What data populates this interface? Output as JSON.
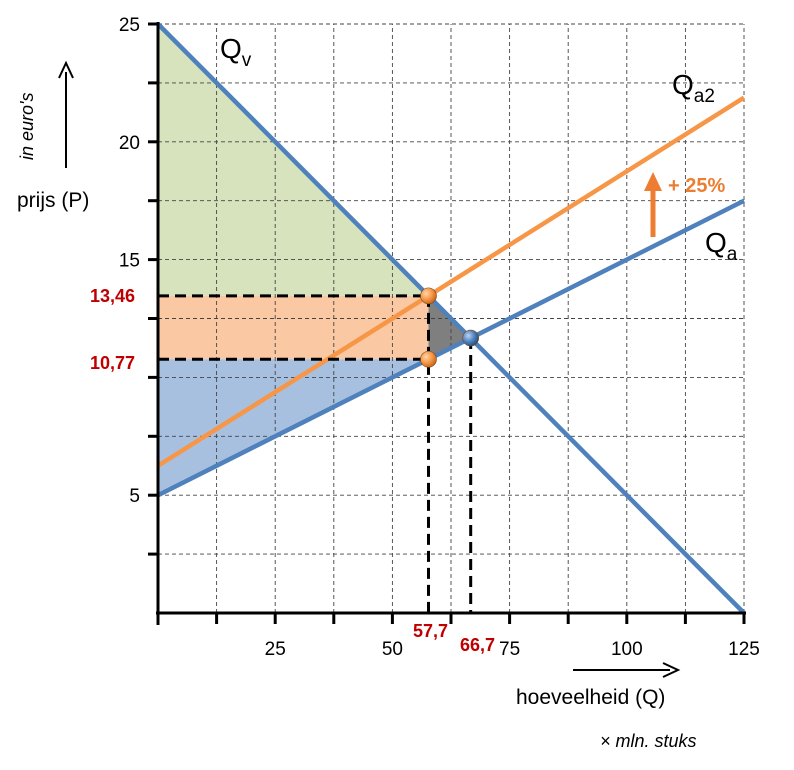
{
  "chart_data": {
    "type": "line",
    "x_axis": {
      "label": "hoeveelheid (Q)",
      "unit": "× mln. stuks",
      "range": [
        0,
        125
      ],
      "ticks": [
        25,
        50,
        75,
        100,
        125
      ],
      "grid_step": 12.5
    },
    "y_axis": {
      "label": "prijs (P)",
      "unit": "in euro's",
      "range": [
        0,
        25
      ],
      "ticks": [
        5,
        15,
        20,
        25
      ],
      "grid_step": 2.5
    },
    "grid": true,
    "series": [
      {
        "name": "Qv",
        "label_main": "Q",
        "label_sub": "v",
        "color": "#4F81BD",
        "points": [
          [
            0,
            25
          ],
          [
            125,
            0
          ]
        ]
      },
      {
        "name": "Qa",
        "label_main": "Q",
        "label_sub": "a",
        "color": "#4F81BD",
        "points": [
          [
            0,
            5
          ],
          [
            125,
            17.5
          ]
        ]
      },
      {
        "name": "Qa2",
        "label_main": "Q",
        "label_sub": "a2",
        "color": "#F79646",
        "points": [
          [
            0,
            6.25
          ],
          [
            125,
            21.875
          ]
        ]
      }
    ],
    "shaded_areas": [
      {
        "name": "green",
        "color": "#D6E3BC",
        "points": [
          [
            0,
            25
          ],
          [
            57.7,
            13.46
          ],
          [
            0,
            13.46
          ]
        ]
      },
      {
        "name": "orange",
        "color": "#FAC8A2",
        "points": [
          [
            0,
            13.46
          ],
          [
            57.7,
            13.46
          ],
          [
            57.7,
            10.77
          ],
          [
            0,
            10.77
          ]
        ]
      },
      {
        "name": "blue",
        "color": "#A8C0E0",
        "points": [
          [
            0,
            10.77
          ],
          [
            57.7,
            10.77
          ],
          [
            0,
            5
          ]
        ]
      },
      {
        "name": "grey",
        "color": "#7F7F7F",
        "points": [
          [
            57.7,
            13.46
          ],
          [
            66.7,
            11.67
          ],
          [
            57.7,
            10.77
          ]
        ]
      }
    ],
    "points": [
      {
        "name": "new equilibrium",
        "x": 57.7,
        "y": 13.46,
        "color": "#F79646"
      },
      {
        "name": "supply price at new quantity",
        "x": 57.7,
        "y": 10.77,
        "color": "#F79646"
      },
      {
        "name": "original equilibrium",
        "x": 66.7,
        "y": 11.67,
        "color": "#4F81BD"
      }
    ],
    "annotations": {
      "price_labels": [
        "13,46",
        "10,77"
      ],
      "price_values": [
        13.46,
        10.77
      ],
      "quantity_labels": [
        "57,7",
        "66,7"
      ],
      "quantity_values": [
        57.7,
        66.7
      ],
      "shift_label": "+ 25%"
    }
  }
}
